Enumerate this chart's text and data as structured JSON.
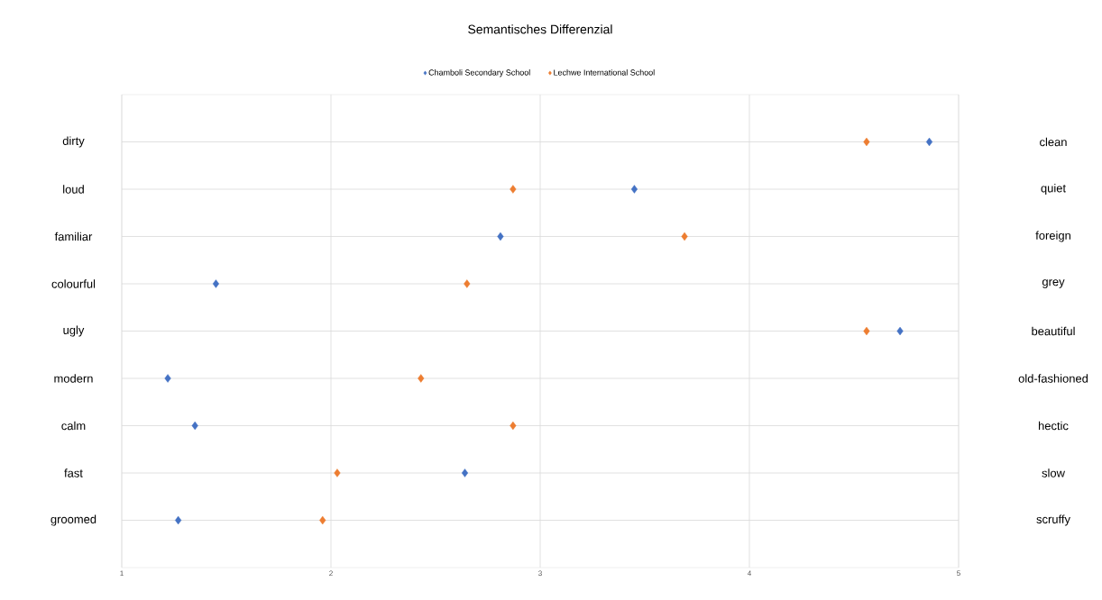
{
  "chart_data": {
    "type": "scatter",
    "title": "Semantisches Differenzial",
    "orientation": "horizontal",
    "categories": [
      "dirty",
      "loud",
      "familiar",
      "colourful",
      "ugly",
      "modern",
      "calm",
      "fast",
      "groomed"
    ],
    "y2_categories": [
      "clean",
      "quiet",
      "foreign",
      "grey",
      "beautiful",
      "old-fashioned",
      "hectic",
      "slow",
      "scruffy"
    ],
    "series": [
      {
        "name": "Chamboli Secondary School",
        "color": "#4472c4",
        "values": [
          4.86,
          3.45,
          2.81,
          1.45,
          4.72,
          1.22,
          1.35,
          2.64,
          1.27
        ]
      },
      {
        "name": "Lechwe International School",
        "color": "#ed7d31",
        "values": [
          4.56,
          2.87,
          3.69,
          2.65,
          4.56,
          2.43,
          2.87,
          2.03,
          1.96
        ]
      }
    ],
    "xlim": [
      1,
      5
    ],
    "xticks": [
      1,
      2,
      3,
      4,
      5
    ],
    "grid": true,
    "legend": "top",
    "marker": "diamond"
  }
}
